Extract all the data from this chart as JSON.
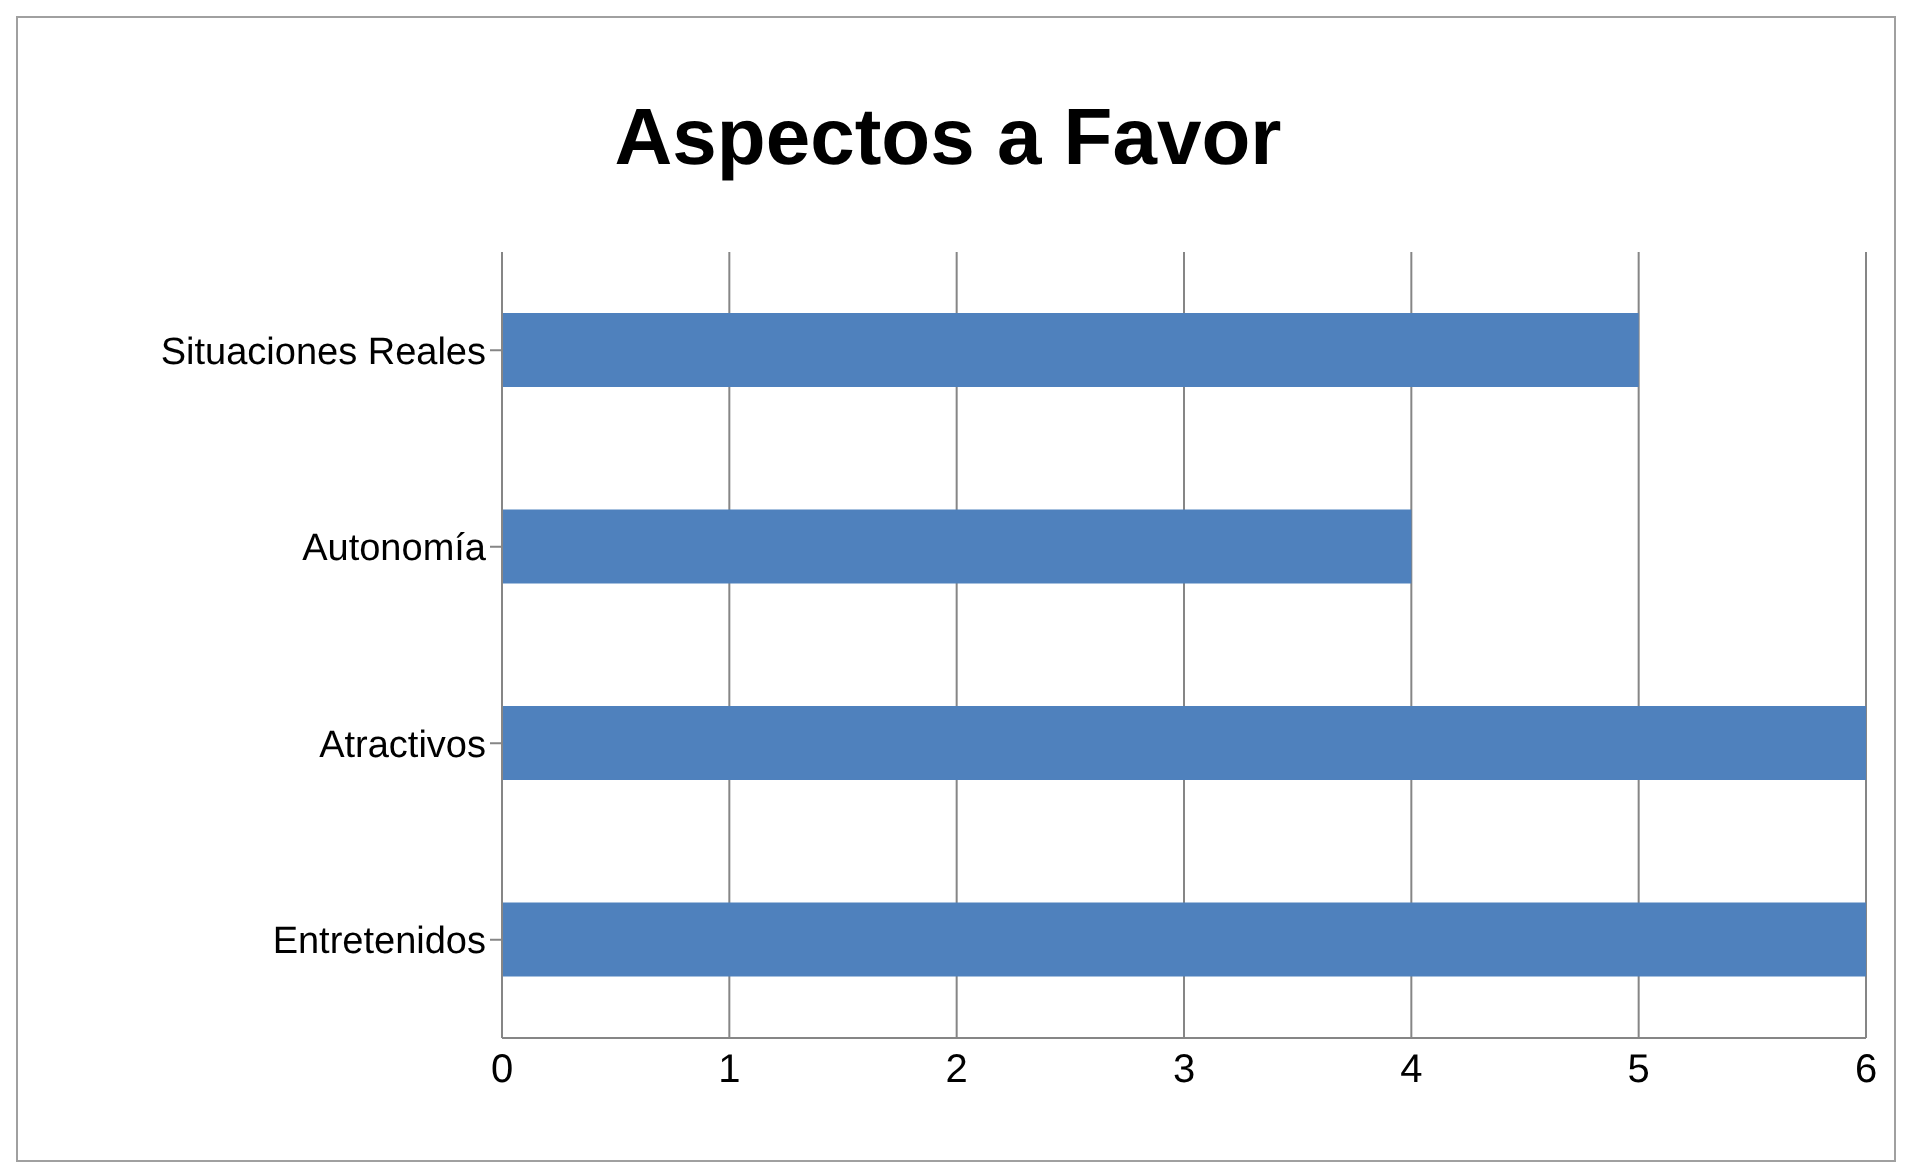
{
  "chart_data": {
    "type": "bar",
    "title": "Aspectos a Favor",
    "orientation": "horizontal",
    "categories": [
      "Situaciones Reales",
      "Autonomía",
      "Atractivos",
      "Entretenidos"
    ],
    "values": [
      5,
      4,
      6,
      6
    ],
    "color": "#4f81bd",
    "xlim": [
      0,
      6
    ],
    "xticks": [
      0,
      1,
      2,
      3,
      4,
      5,
      6
    ],
    "grid": "x"
  }
}
